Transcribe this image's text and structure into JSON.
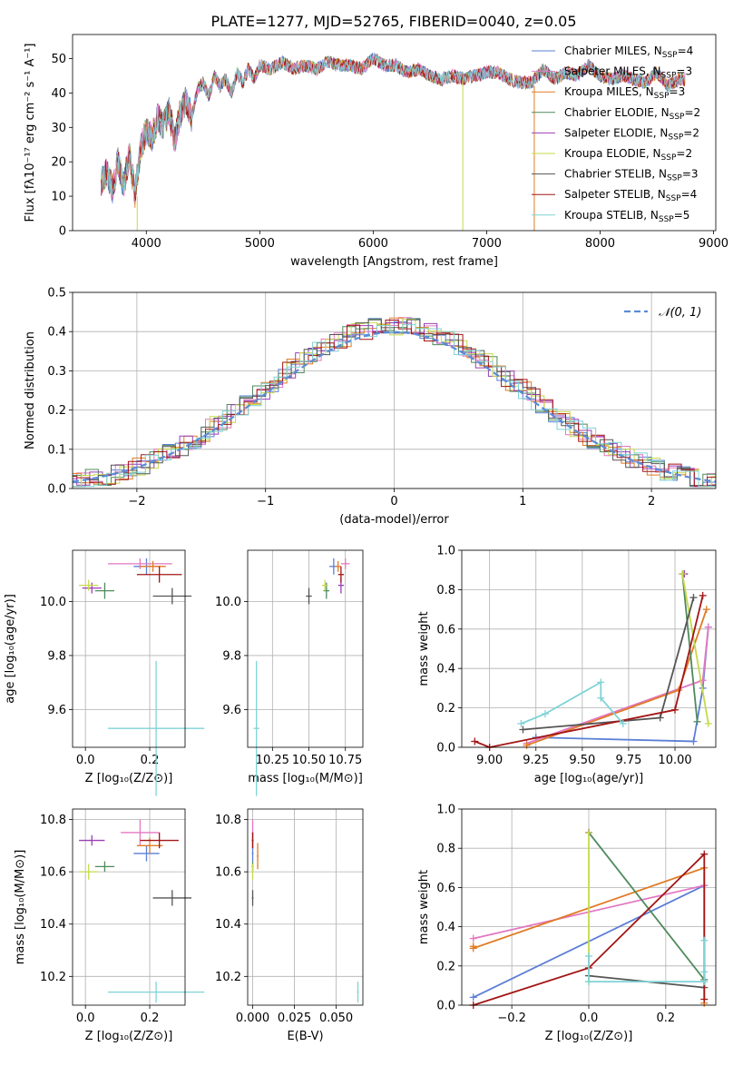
{
  "figure": {
    "title": "PLATE=1277, MJD=52765, FIBERID=0040, z=0.05"
  },
  "colors": {
    "Chabrier MILES": "#5b7fd6",
    "Salpeter MILES": "#e377c2",
    "Kroupa MILES": "#e07b24",
    "Chabrier ELODIE": "#4f8a5c",
    "Salpeter ELODIE": "#9b3fb5",
    "Kroupa ELODIE": "#c6d94a",
    "Chabrier STELIB": "#555555",
    "Salpeter STELIB": "#a31515",
    "Kroupa STELIB": "#7fd3d6"
  },
  "chart_data": [
    {
      "id": "spectrum",
      "type": "line",
      "xlabel": "wavelength [Angstrom, rest frame]",
      "ylabel": "Flux [fλ10⁻¹⁷ erg cm⁻² s⁻¹ A⁻¹]",
      "xlim": [
        3350,
        9020
      ],
      "ylim": [
        0,
        57
      ],
      "xticks": [
        "4000",
        "5000",
        "6000",
        "7000",
        "8000",
        "9000"
      ],
      "yticks": [
        "0",
        "10",
        "20",
        "30",
        "40",
        "50"
      ],
      "legend_position": "top-right",
      "legend": [
        {
          "label": "Chabrier MILES, N",
          "sub": "SSP",
          "n": "=4"
        },
        {
          "label": "Salpeter MILES, N",
          "sub": "SSP",
          "n": "=3"
        },
        {
          "label": "Kroupa MILES, N",
          "sub": "SSP",
          "n": "=3"
        },
        {
          "label": "Chabrier ELODIE, N",
          "sub": "SSP",
          "n": "=2"
        },
        {
          "label": "Salpeter ELODIE, N",
          "sub": "SSP",
          "n": "=2"
        },
        {
          "label": "Kroupa ELODIE, N",
          "sub": "SSP",
          "n": "=2"
        },
        {
          "label": "Chabrier STELIB, N",
          "sub": "SSP",
          "n": "=3"
        },
        {
          "label": "Salpeter STELIB, N",
          "sub": "SSP",
          "n": "=4"
        },
        {
          "label": "Kroupa STELIB, N",
          "sub": "SSP",
          "n": "=5"
        }
      ],
      "spectrum_x": [
        3600,
        3650,
        3700,
        3750,
        3800,
        3850,
        3900,
        3950,
        4000,
        4050,
        4100,
        4150,
        4200,
        4250,
        4300,
        4350,
        4400,
        4450,
        4500,
        4550,
        4600,
        4650,
        4700,
        4750,
        4800,
        4850,
        4900,
        4950,
        5000,
        5100,
        5200,
        5300,
        5400,
        5500,
        5600,
        5700,
        5800,
        5900,
        6000,
        6100,
        6200,
        6300,
        6400,
        6500,
        6600,
        6700,
        6800,
        6900,
        7000,
        7100,
        7200,
        7300,
        7400,
        7500,
        7600,
        7700,
        7800,
        7900,
        8000,
        8100,
        8200,
        8300,
        8400,
        8500,
        8600,
        8700
      ],
      "spectrum_y": [
        14,
        17,
        12,
        20,
        13,
        22,
        11,
        24,
        29,
        27,
        33,
        30,
        35,
        26,
        34,
        38,
        33,
        41,
        43,
        39,
        45,
        42,
        44,
        40,
        46,
        43,
        47,
        44,
        48,
        47,
        49,
        47,
        48,
        47,
        49,
        48,
        48,
        47,
        50,
        48,
        48,
        46,
        47,
        45,
        44,
        45,
        44,
        45,
        46,
        46,
        44,
        43,
        43,
        47,
        44,
        46,
        45,
        48,
        45,
        44,
        45,
        44,
        43,
        46,
        42,
        44
      ]
    },
    {
      "id": "residuals",
      "type": "step",
      "xlabel": "(data-model)/error",
      "ylabel": "Normed distribution",
      "xlim": [
        -2.5,
        2.5
      ],
      "ylim": [
        0,
        0.5
      ],
      "xticks": [
        "−2",
        "−1",
        "0",
        "1",
        "2"
      ],
      "yticks": [
        "0.0",
        "0.1",
        "0.2",
        "0.3",
        "0.4",
        "0.5"
      ],
      "legend_position": "top-right",
      "legend": [
        {
          "label": "𝒩(0, 1)"
        }
      ],
      "reference_curve": "standard normal density"
    },
    {
      "id": "age_vs_Z",
      "type": "scatter",
      "xlabel": "Z [log₁₀(Z/Z⊙)]",
      "ylabel": "age [log₁₀(age/yr)]",
      "xlim": [
        -0.04,
        0.31
      ],
      "ylim": [
        9.46,
        10.19
      ],
      "xticks": [
        "0.0",
        "0.2"
      ],
      "yticks": [
        "9.6",
        "9.8",
        "10.0"
      ],
      "points": [
        {
          "s": "Chabrier MILES",
          "x": 0.19,
          "y": 10.13,
          "ex": 0.04,
          "ey": 0.03
        },
        {
          "s": "Salpeter MILES",
          "x": 0.17,
          "y": 10.14,
          "ex": 0.1,
          "ey": 0.02
        },
        {
          "s": "Kroupa MILES",
          "x": 0.21,
          "y": 10.13,
          "ex": 0.04,
          "ey": 0.02
        },
        {
          "s": "Chabrier ELODIE",
          "x": 0.06,
          "y": 10.04,
          "ex": 0.03,
          "ey": 0.03
        },
        {
          "s": "Salpeter ELODIE",
          "x": 0.02,
          "y": 10.05,
          "ex": 0.03,
          "ey": 0.02
        },
        {
          "s": "Kroupa ELODIE",
          "x": 0.01,
          "y": 10.06,
          "ex": 0.03,
          "ey": 0.02
        },
        {
          "s": "Chabrier STELIB",
          "x": 0.27,
          "y": 10.02,
          "ex": 0.06,
          "ey": 0.03
        },
        {
          "s": "Salpeter STELIB",
          "x": 0.23,
          "y": 10.1,
          "ex": 0.07,
          "ey": 0.03
        },
        {
          "s": "Kroupa STELIB",
          "x": 0.22,
          "y": 9.53,
          "ex": 0.15,
          "ey": 0.25
        }
      ]
    },
    {
      "id": "age_vs_mass",
      "type": "scatter",
      "xlabel": "mass [log₁₀(M/M⊙)]",
      "ylabel": "",
      "xlim": [
        10.08,
        10.87
      ],
      "ylim": [
        9.46,
        10.19
      ],
      "xticks": [
        "10.25",
        "10.50",
        "10.75"
      ],
      "yticks": [
        "9.6",
        "9.8",
        "10.0"
      ],
      "points": [
        {
          "s": "Chabrier MILES",
          "x": 10.67,
          "y": 10.13,
          "ex": 0.03,
          "ey": 0.03
        },
        {
          "s": "Salpeter MILES",
          "x": 10.75,
          "y": 10.14,
          "ex": 0.03,
          "ey": 0.02
        },
        {
          "s": "Kroupa MILES",
          "x": 10.7,
          "y": 10.13,
          "ex": 0.02,
          "ey": 0.02
        },
        {
          "s": "Chabrier ELODIE",
          "x": 10.62,
          "y": 10.04,
          "ex": 0.02,
          "ey": 0.03
        },
        {
          "s": "Salpeter ELODIE",
          "x": 10.72,
          "y": 10.06,
          "ex": 0.02,
          "ey": 0.03
        },
        {
          "s": "Kroupa ELODIE",
          "x": 10.61,
          "y": 10.06,
          "ex": 0.02,
          "ey": 0.02
        },
        {
          "s": "Chabrier STELIB",
          "x": 10.5,
          "y": 10.02,
          "ex": 0.02,
          "ey": 0.03
        },
        {
          "s": "Salpeter STELIB",
          "x": 10.72,
          "y": 10.1,
          "ex": 0.02,
          "ey": 0.03
        },
        {
          "s": "Kroupa STELIB",
          "x": 10.14,
          "y": 9.53,
          "ex": 0.02,
          "ey": 0.25
        }
      ]
    },
    {
      "id": "weight_vs_age",
      "type": "line",
      "xlabel": "age [log₁₀(age/yr)]",
      "ylabel": "mass weight",
      "xlim": [
        8.85,
        10.22
      ],
      "ylim": [
        0,
        1.0
      ],
      "xticks": [
        "9.00",
        "9.25",
        "9.50",
        "9.75",
        "10.00"
      ],
      "yticks": [
        "0.0",
        "0.2",
        "0.4",
        "0.6",
        "0.8",
        "1.0"
      ],
      "series": [
        {
          "s": "Chabrier MILES",
          "x": [
            9.25,
            10.1,
            10.15,
            10.18
          ],
          "y": [
            0.05,
            0.03,
            0.3,
            0.61
          ]
        },
        {
          "s": "Salpeter MILES",
          "x": [
            9.2,
            10.15,
            10.18
          ],
          "y": [
            0.02,
            0.34,
            0.61
          ]
        },
        {
          "s": "Kroupa MILES",
          "x": [
            9.2,
            10.02,
            10.17
          ],
          "y": [
            0.01,
            0.29,
            0.7
          ]
        },
        {
          "s": "Chabrier ELODIE",
          "x": [
            10.04,
            10.12
          ],
          "y": [
            0.88,
            0.13
          ]
        },
        {
          "s": "Salpeter ELODIE",
          "x": [
            10.05,
            10.05
          ],
          "y": [
            0.88,
            0.88
          ]
        },
        {
          "s": "Kroupa ELODIE",
          "x": [
            10.04,
            10.18
          ],
          "y": [
            0.88,
            0.12
          ]
        },
        {
          "s": "Chabrier STELIB",
          "x": [
            9.18,
            9.92,
            10.1
          ],
          "y": [
            0.09,
            0.15,
            0.76
          ]
        },
        {
          "s": "Salpeter STELIB",
          "x": [
            8.92,
            9.0,
            10.0,
            10.15
          ],
          "y": [
            0.03,
            0.0,
            0.19,
            0.77
          ]
        },
        {
          "s": "Kroupa STELIB",
          "x": [
            9.17,
            9.3,
            9.6,
            9.6,
            9.72
          ],
          "y": [
            0.12,
            0.17,
            0.33,
            0.25,
            0.12
          ]
        }
      ]
    },
    {
      "id": "mass_vs_Z",
      "type": "scatter",
      "xlabel": "Z [log₁₀(Z/Z⊙)]",
      "ylabel": "mass [log₁₀(M/M⊙)]",
      "xlim": [
        -0.04,
        0.31
      ],
      "ylim": [
        10.09,
        10.84
      ],
      "xticks": [
        "0.0",
        "0.2"
      ],
      "yticks": [
        "10.2",
        "10.4",
        "10.6",
        "10.8"
      ],
      "points": [
        {
          "s": "Chabrier MILES",
          "x": 0.19,
          "y": 10.67,
          "ex": 0.04,
          "ey": 0.03
        },
        {
          "s": "Salpeter MILES",
          "x": 0.17,
          "y": 10.75,
          "ex": 0.06,
          "ey": 0.05
        },
        {
          "s": "Kroupa MILES",
          "x": 0.2,
          "y": 10.7,
          "ex": 0.04,
          "ey": 0.03
        },
        {
          "s": "Chabrier ELODIE",
          "x": 0.06,
          "y": 10.62,
          "ex": 0.03,
          "ey": 0.02
        },
        {
          "s": "Salpeter ELODIE",
          "x": 0.02,
          "y": 10.72,
          "ex": 0.04,
          "ey": 0.02
        },
        {
          "s": "Kroupa ELODIE",
          "x": 0.01,
          "y": 10.6,
          "ex": 0.03,
          "ey": 0.03
        },
        {
          "s": "Chabrier STELIB",
          "x": 0.27,
          "y": 10.5,
          "ex": 0.06,
          "ey": 0.03
        },
        {
          "s": "Salpeter STELIB",
          "x": 0.23,
          "y": 10.72,
          "ex": 0.06,
          "ey": 0.03
        },
        {
          "s": "Kroupa STELIB",
          "x": 0.22,
          "y": 10.14,
          "ex": 0.15,
          "ey": 0.04
        }
      ]
    },
    {
      "id": "mass_vs_ebv",
      "type": "scatter",
      "xlabel": "E(B-V)",
      "ylabel": "",
      "xlim": [
        -0.003,
        0.066
      ],
      "ylim": [
        10.09,
        10.84
      ],
      "xticks": [
        "0.000",
        "0.025",
        "0.050"
      ],
      "yticks": [
        "10.2",
        "10.4",
        "10.6",
        "10.8"
      ],
      "points": [
        {
          "s": "Chabrier MILES",
          "x": 0.0,
          "y": 10.67,
          "ex": 0.0005,
          "ey": 0.03
        },
        {
          "s": "Salpeter MILES",
          "x": 0.0,
          "y": 10.75,
          "ex": 0.0005,
          "ey": 0.05
        },
        {
          "s": "Kroupa MILES",
          "x": 0.003,
          "y": 10.66,
          "ex": 0.0005,
          "ey": 0.05
        },
        {
          "s": "Chabrier ELODIE",
          "x": 0.0,
          "y": 10.62,
          "ex": 0.0005,
          "ey": 0.02
        },
        {
          "s": "Salpeter ELODIE",
          "x": 0.0,
          "y": 10.72,
          "ex": 0.0005,
          "ey": 0.03
        },
        {
          "s": "Kroupa ELODIE",
          "x": 0.0,
          "y": 10.6,
          "ex": 0.0005,
          "ey": 0.03
        },
        {
          "s": "Chabrier STELIB",
          "x": 0.0,
          "y": 10.5,
          "ex": 0.0005,
          "ey": 0.03
        },
        {
          "s": "Salpeter STELIB",
          "x": 0.0,
          "y": 10.72,
          "ex": 0.0005,
          "ey": 0.03
        },
        {
          "s": "Kroupa STELIB",
          "x": 0.063,
          "y": 10.14,
          "ex": 0.0005,
          "ey": 0.04
        }
      ]
    },
    {
      "id": "weight_vs_Z",
      "type": "line",
      "xlabel": "Z [log₁₀(Z/Z⊙)]",
      "ylabel": "mass weight",
      "xlim": [
        -0.33,
        0.33
      ],
      "ylim": [
        0,
        1.0
      ],
      "xticks": [
        "−0.2",
        "0.0",
        "0.2"
      ],
      "yticks": [
        "0.0",
        "0.2",
        "0.4",
        "0.6",
        "0.8",
        "1.0"
      ],
      "series": [
        {
          "s": "Chabrier MILES",
          "x": [
            -0.3,
            0.3
          ],
          "y": [
            0.04,
            0.61
          ]
        },
        {
          "s": "Salpeter MILES",
          "x": [
            -0.3,
            0.3
          ],
          "y": [
            0.34,
            0.61
          ]
        },
        {
          "s": "Kroupa MILES",
          "x": [
            -0.3,
            -0.3,
            0.3,
            0.3
          ],
          "y": [
            0.3,
            0.29,
            0.7,
            0.01
          ]
        },
        {
          "s": "Chabrier ELODIE",
          "x": [
            0.0,
            0.3
          ],
          "y": [
            0.88,
            0.13
          ]
        },
        {
          "s": "Salpeter ELODIE",
          "x": [
            0.0,
            0.0
          ],
          "y": [
            0.88,
            0.88
          ]
        },
        {
          "s": "Kroupa ELODIE",
          "x": [
            0.0,
            0.0
          ],
          "y": [
            0.12,
            0.88
          ]
        },
        {
          "s": "Chabrier STELIB",
          "x": [
            0.0,
            0.3
          ],
          "y": [
            0.15,
            0.09
          ]
        },
        {
          "s": "Salpeter STELIB",
          "x": [
            -0.3,
            0.0,
            0.3,
            0.3
          ],
          "y": [
            0.0,
            0.19,
            0.77,
            0.03
          ]
        },
        {
          "s": "Kroupa STELIB",
          "x": [
            0.0,
            0.0,
            0.3,
            0.3,
            0.3
          ],
          "y": [
            0.25,
            0.12,
            0.12,
            0.17,
            0.33
          ]
        }
      ]
    }
  ]
}
